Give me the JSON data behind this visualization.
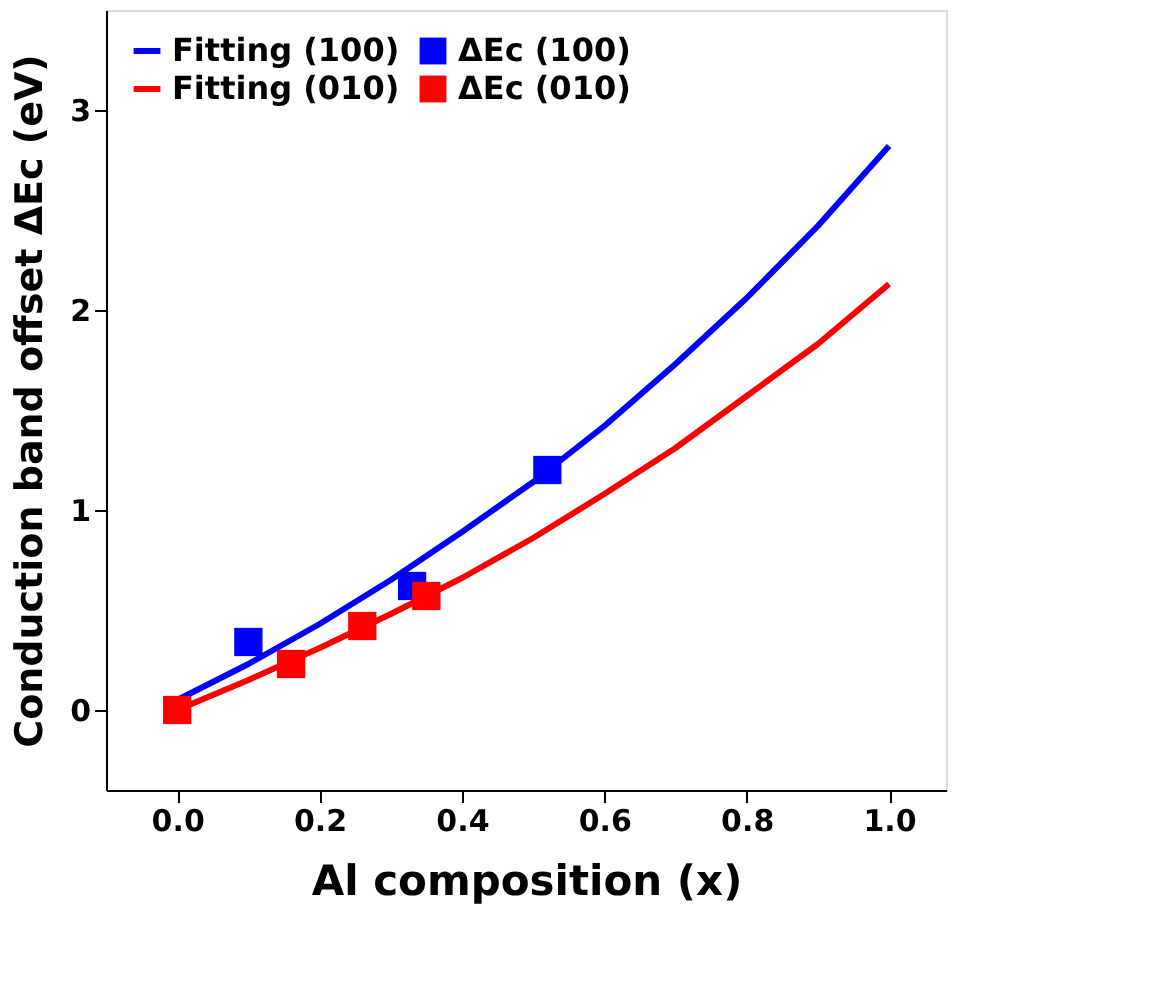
{
  "chart_data": {
    "type": "scatter",
    "xlabel": "Al composition (x)",
    "ylabel": "Conduction band offset ΔEc (eV)",
    "xlim": [
      -0.1,
      1.08
    ],
    "xticks": [
      {
        "value": 0,
        "label": "0.0"
      },
      0.2,
      0.4,
      0.6,
      0.8,
      {
        "value": 1,
        "label": "1.0"
      }
    ],
    "ylim": [
      -0.4,
      3.5
    ],
    "yticks": [
      0,
      1,
      2,
      3
    ],
    "grid": false,
    "legend": "top left",
    "marker": "square",
    "series": [
      {
        "name": "ΔEc (100)",
        "color": "#0000ff",
        "x": [
          0.1,
          0.33,
          0.52
        ],
        "values": [
          0.34,
          0.62,
          1.2
        ]
      },
      {
        "name": "ΔEc (010)",
        "color": "#ff0000",
        "x": [
          0.0,
          0.16,
          0.26,
          0.35
        ],
        "values": [
          0.0,
          0.23,
          0.42,
          0.57
        ]
      },
      {
        "name": "Fitting (100)",
        "type": "line",
        "marker": "none",
        "color": "#0000ff",
        "x": [
          0,
          0.1,
          0.2,
          0.3,
          0.4,
          0.5,
          0.6,
          0.7,
          0.8,
          0.9,
          1.0
        ],
        "values": [
          0.05,
          0.23,
          0.43,
          0.65,
          0.89,
          1.14,
          1.42,
          1.73,
          2.06,
          2.42,
          2.82
        ]
      },
      {
        "name": "Fitting (010)",
        "type": "line",
        "marker": "none",
        "color": "#ff0000",
        "x": [
          0,
          0.1,
          0.2,
          0.3,
          0.4,
          0.5,
          0.6,
          0.7,
          0.8,
          0.9,
          1.0
        ],
        "values": [
          0.0,
          0.15,
          0.31,
          0.48,
          0.66,
          0.86,
          1.08,
          1.31,
          1.57,
          1.83,
          2.13
        ]
      }
    ]
  }
}
